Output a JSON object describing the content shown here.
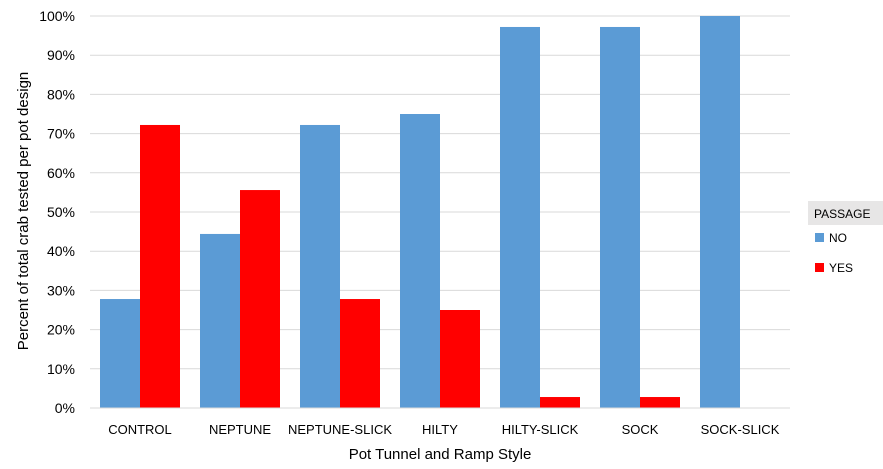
{
  "chart_data": {
    "type": "bar",
    "title": "",
    "xlabel": "Pot Tunnel and Ramp Style",
    "ylabel": "Percent of total crab tested per pot design",
    "ylim": [
      0,
      100
    ],
    "yticks": [
      0,
      10,
      20,
      30,
      40,
      50,
      60,
      70,
      80,
      90,
      100
    ],
    "ytick_labels": [
      "0%",
      "10%",
      "20%",
      "30%",
      "40%",
      "50%",
      "60%",
      "70%",
      "80%",
      "90%",
      "100%"
    ],
    "grid": true,
    "legend_position": "right",
    "legend_title": "PASSAGE",
    "categories": [
      "CONTROL",
      "NEPTUNE",
      "NEPTUNE-SLICK",
      "HILTY",
      "HILTY-SLICK",
      "SOCK",
      "SOCK-SLICK"
    ],
    "series": [
      {
        "name": "NO",
        "color": "#5b9bd5",
        "values": [
          27.8,
          44.4,
          72.2,
          75,
          97.2,
          97.2,
          100
        ]
      },
      {
        "name": "YES",
        "color": "#ff0000",
        "values": [
          72.2,
          55.6,
          27.8,
          25,
          2.8,
          2.8,
          0
        ]
      }
    ]
  }
}
